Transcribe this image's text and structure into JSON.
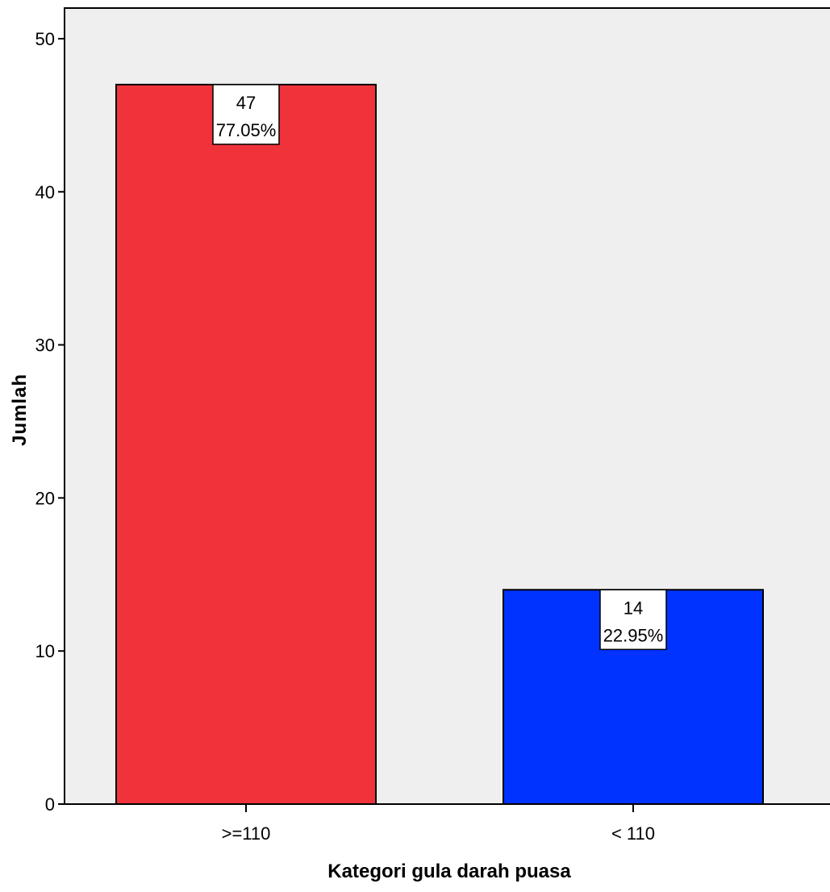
{
  "chart_data": {
    "type": "bar",
    "categories": [
      ">=110",
      "< 110"
    ],
    "values": [
      47,
      14
    ],
    "percent_labels": [
      "77.05%",
      "22.95%"
    ],
    "colors": [
      "#f0333b",
      "#0033ff"
    ],
    "plot_background": "#efefef",
    "xlabel": "Kategori gula darah puasa",
    "ylabel": "Jumlah",
    "ylim": [
      0,
      52
    ],
    "yticks": [
      0,
      10,
      20,
      30,
      40,
      50
    ],
    "grid": false,
    "legend": "none"
  }
}
